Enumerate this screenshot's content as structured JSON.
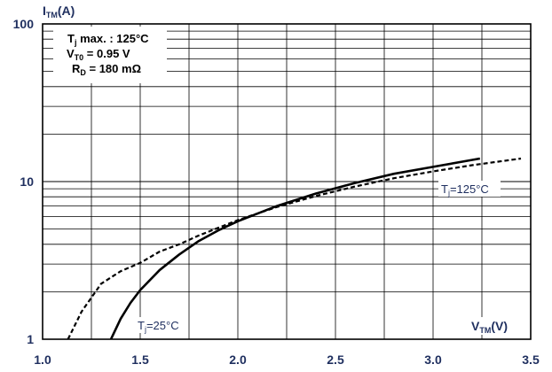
{
  "chart_data": {
    "type": "line",
    "x_axis": {
      "label_main": "V",
      "label_sub": "TM",
      "label_unit": "(V)",
      "range": [
        1.0,
        3.5
      ],
      "ticks": [
        1.0,
        1.5,
        2.0,
        2.5,
        3.0,
        3.5
      ],
      "tick_labels": [
        "1.0",
        "1.5",
        "2.0",
        "2.5",
        "3.0",
        "3.5"
      ]
    },
    "y_axis": {
      "label_main": "I",
      "label_sub": "TM",
      "label_unit": "(A)",
      "scale": "log",
      "range": [
        1,
        100
      ],
      "ticks": [
        1,
        10,
        100
      ],
      "tick_labels": [
        "1",
        "10",
        "100"
      ]
    },
    "grid": true,
    "annotation_box": {
      "line1": {
        "main": "T",
        "sub": "j",
        "rest": " max. : 125°C"
      },
      "line2": {
        "main": "V",
        "sub": "T0",
        "rest": " = 0.95 V"
      },
      "line3": {
        "main": "R",
        "sub": "D",
        "rest": " = 180 mΩ"
      }
    },
    "series": [
      {
        "label_main": "T",
        "label_sub": "j",
        "label_rest": "=25°C",
        "style": "solid",
        "x": [
          1.35,
          1.4,
          1.45,
          1.5,
          1.6,
          1.7,
          1.8,
          1.9,
          2.0,
          2.2,
          2.4,
          2.6,
          2.8,
          3.0,
          3.24
        ],
        "y": [
          1.0,
          1.35,
          1.7,
          2.05,
          2.75,
          3.45,
          4.2,
          4.9,
          5.6,
          7.0,
          8.4,
          9.8,
          11.2,
          12.4,
          14.0
        ]
      },
      {
        "label_main": "T",
        "label_sub": "j",
        "label_rest": "=125°C",
        "style": "dashed",
        "x": [
          1.13,
          1.2,
          1.3,
          1.4,
          1.5,
          1.6,
          1.7,
          1.8,
          2.0,
          2.2,
          2.4,
          2.6,
          2.8,
          3.0,
          3.2,
          3.45
        ],
        "y": [
          1.0,
          1.5,
          2.25,
          2.7,
          3.05,
          3.6,
          4.0,
          4.55,
          5.7,
          6.9,
          8.1,
          9.3,
          10.5,
          11.6,
          12.7,
          14.0
        ]
      }
    ]
  }
}
